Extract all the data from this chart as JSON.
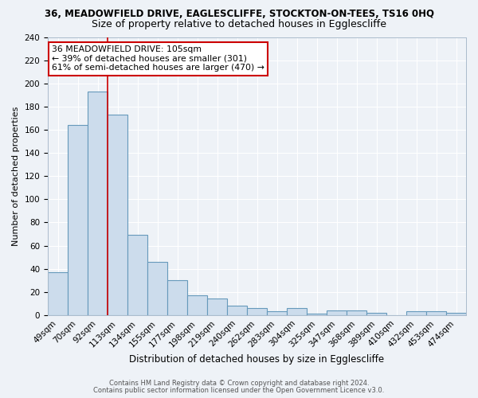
{
  "title1": "36, MEADOWFIELD DRIVE, EAGLESCLIFFE, STOCKTON-ON-TEES, TS16 0HQ",
  "title2": "Size of property relative to detached houses in Egglescliffe",
  "xlabel": "Distribution of detached houses by size in Egglescliffe",
  "ylabel": "Number of detached properties",
  "categories": [
    "49sqm",
    "70sqm",
    "92sqm",
    "113sqm",
    "134sqm",
    "155sqm",
    "177sqm",
    "198sqm",
    "219sqm",
    "240sqm",
    "262sqm",
    "283sqm",
    "304sqm",
    "325sqm",
    "347sqm",
    "368sqm",
    "389sqm",
    "410sqm",
    "432sqm",
    "453sqm",
    "474sqm"
  ],
  "values": [
    37,
    164,
    193,
    173,
    69,
    46,
    30,
    17,
    14,
    8,
    6,
    3,
    6,
    1,
    4,
    4,
    2,
    0,
    3,
    3,
    2
  ],
  "bar_color": "#ccdcec",
  "bar_edge_color": "#6699bb",
  "red_line_x": 2.5,
  "annotation_text": "36 MEADOWFIELD DRIVE: 105sqm\n← 39% of detached houses are smaller (301)\n61% of semi-detached houses are larger (470) →",
  "annotation_box_color": "#ffffff",
  "annotation_box_edge_color": "#cc0000",
  "footer1": "Contains HM Land Registry data © Crown copyright and database right 2024.",
  "footer2": "Contains public sector information licensed under the Open Government Licence v3.0.",
  "ylim": [
    0,
    240
  ],
  "yticks": [
    0,
    20,
    40,
    60,
    80,
    100,
    120,
    140,
    160,
    180,
    200,
    220,
    240
  ],
  "bg_color": "#eef2f7",
  "grid_color": "#ffffff",
  "title1_fontsize": 8.5,
  "title2_fontsize": 9.0,
  "annotation_fontsize": 7.8,
  "axis_fontsize": 7.5,
  "ylabel_fontsize": 8.0,
  "xlabel_fontsize": 8.5
}
